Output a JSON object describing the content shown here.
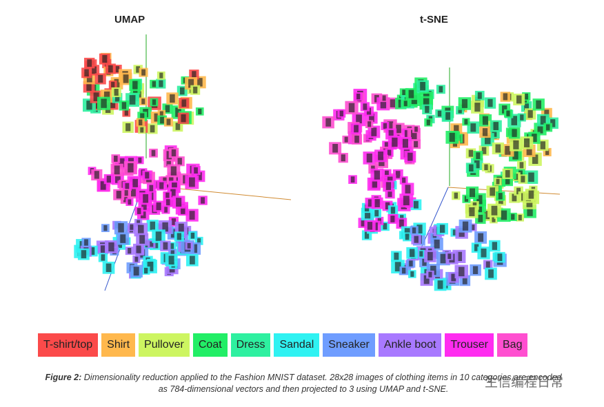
{
  "titles": {
    "umap": "UMAP",
    "tsne": "t-SNE"
  },
  "legend": [
    {
      "label": "T-shirt/top",
      "color": "#fb4a4a"
    },
    {
      "label": "Shirt",
      "color": "#ffb84d"
    },
    {
      "label": "Pullover",
      "color": "#cdf561"
    },
    {
      "label": "Coat",
      "color": "#22ee66"
    },
    {
      "label": "Dress",
      "color": "#2ef0a0"
    },
    {
      "label": "Sandal",
      "color": "#2ff2f2"
    },
    {
      "label": "Sneaker",
      "color": "#6f9dff"
    },
    {
      "label": "Ankle boot",
      "color": "#a879ff"
    },
    {
      "label": "Trouser",
      "color": "#ff2cf0"
    },
    {
      "label": "Bag",
      "color": "#ff4fd0"
    }
  ],
  "caption": {
    "label": "Figure 2:",
    "text": "Dimensionality reduction applied to the Fashion MNIST dataset. 28x28 images of clothing items in 10 categories are encoded as 784-dimensional vectors and then projected to 3 using UMAP and t-SNE."
  },
  "watermark": "生信编程日常"
}
